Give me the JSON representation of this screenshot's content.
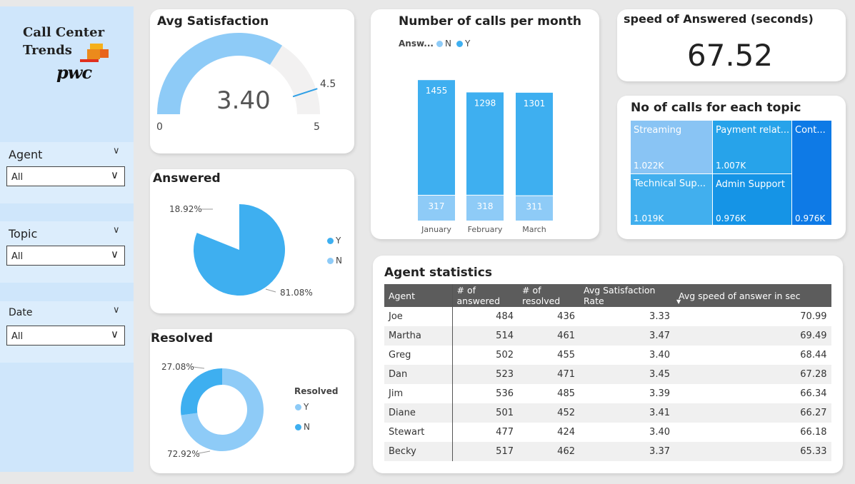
{
  "brand": {
    "line1": "Call Center",
    "line2": "Trends",
    "logo": "pwc"
  },
  "slicers": [
    {
      "label": "Agent",
      "value": "All"
    },
    {
      "label": "Topic",
      "value": "All"
    },
    {
      "label": "Date",
      "value": "All"
    }
  ],
  "avg_satisfaction": {
    "title": "Avg Satisfaction",
    "value": "3.40",
    "min": "0",
    "max": "5",
    "target": "4.5",
    "chart_data": {
      "type": "gauge",
      "value": 3.4,
      "min": 0,
      "max": 5,
      "target": 4.5
    }
  },
  "answered": {
    "title": "Answered",
    "legend": [
      "Y",
      "N"
    ],
    "labels": {
      "y": "81.08%",
      "n": "18.92%"
    },
    "chart_data": {
      "type": "pie",
      "categories": [
        "Y",
        "N"
      ],
      "values": [
        81.08,
        18.92
      ]
    }
  },
  "resolved": {
    "title": "Resolved",
    "legend_title": "Resolved",
    "legend": [
      "Y",
      "N"
    ],
    "labels": {
      "y": "72.92%",
      "n": "27.08%"
    },
    "chart_data": {
      "type": "pie",
      "categories": [
        "Y",
        "N"
      ],
      "values": [
        72.92,
        27.08
      ]
    }
  },
  "calls_per_month": {
    "title": "Number of calls per month",
    "legend_title": "Answ...",
    "legend": [
      "N",
      "Y"
    ],
    "chart_data": {
      "type": "bar",
      "categories": [
        "January",
        "February",
        "March"
      ],
      "series": [
        {
          "name": "N",
          "values": [
            317,
            318,
            311
          ]
        },
        {
          "name": "Y",
          "values": [
            1455,
            1298,
            1301
          ]
        }
      ],
      "stacked": true
    }
  },
  "speed": {
    "title": "speed of Answered (seconds)",
    "value": "67.52"
  },
  "topics": {
    "title": "No of calls for each topic",
    "items": [
      {
        "name": "Streaming",
        "value": "1.022K",
        "color": "#89c4f4"
      },
      {
        "name": "Payment relat...",
        "value": "1.007K",
        "color": "#27a3ea"
      },
      {
        "name": "Cont...",
        "value": "0.976K",
        "color": "#0e7ae6"
      },
      {
        "name": "Technical Sup...",
        "value": "1.019K",
        "color": "#41afee"
      },
      {
        "name": "Admin Support",
        "value": "0.976K",
        "color": "#1594e6"
      }
    ]
  },
  "agent_stats": {
    "title": "Agent statistics",
    "columns": [
      "Agent",
      "# of answered",
      "# of resolved",
      "Avg Satisfaction Rate",
      "Avg speed of answer in sec"
    ],
    "rows": [
      [
        "Joe",
        "484",
        "436",
        "3.33",
        "70.99"
      ],
      [
        "Martha",
        "514",
        "461",
        "3.47",
        "69.49"
      ],
      [
        "Greg",
        "502",
        "455",
        "3.40",
        "68.44"
      ],
      [
        "Dan",
        "523",
        "471",
        "3.45",
        "67.28"
      ],
      [
        "Jim",
        "536",
        "485",
        "3.39",
        "66.34"
      ],
      [
        "Diane",
        "501",
        "452",
        "3.41",
        "66.27"
      ],
      [
        "Stewart",
        "477",
        "424",
        "3.40",
        "66.18"
      ],
      [
        "Becky",
        "517",
        "462",
        "3.37",
        "65.33"
      ]
    ]
  },
  "colors": {
    "light": "#8ecbf7",
    "dark": "#3eaff0",
    "gauge_bg": "#f2f1f1",
    "target": "#2e9fe6"
  }
}
